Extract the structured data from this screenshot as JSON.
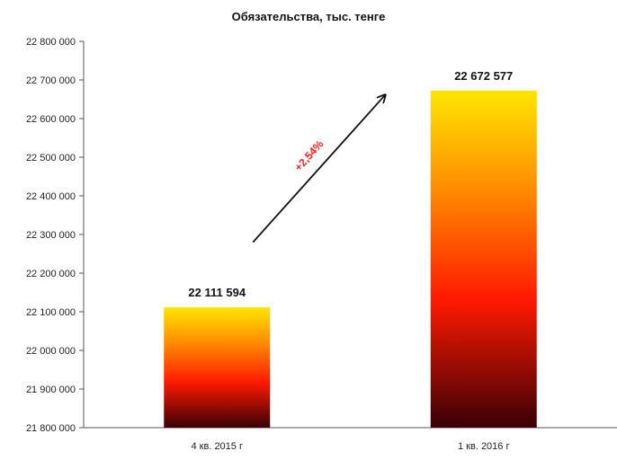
{
  "chart_data": {
    "type": "bar",
    "title": "Обязательства, тыс. тенге",
    "categories": [
      "4 кв. 2015 г",
      "1 кв. 2016 г"
    ],
    "values": [
      22111594,
      22672577
    ],
    "data_labels": [
      "22 111 594",
      "22 672 577"
    ],
    "ylim": [
      21800000,
      22800000
    ],
    "ytick_step": 100000,
    "ytick_labels": [
      "21 800 000",
      "21 900 000",
      "22 000 000",
      "22 100 000",
      "22 200 000",
      "22 300 000",
      "22 400 000",
      "22 500 000",
      "22 600 000",
      "22 700 000",
      "22 800 000"
    ],
    "xlabel": "",
    "ylabel": "",
    "grid": false,
    "legend": "none",
    "annotation": {
      "text": "+2,54%",
      "color": "#ff1f1f"
    },
    "bar_gradient": [
      "#ffe600",
      "#ff8a00",
      "#ff1a00",
      "#3a0006"
    ]
  }
}
